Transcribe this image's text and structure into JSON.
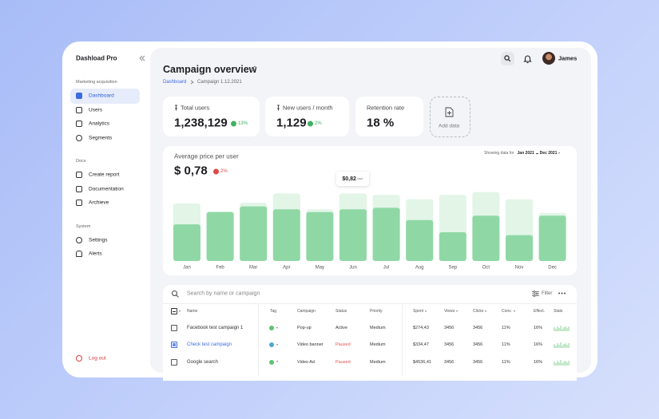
{
  "sidebar": {
    "brand": "Dashload Pro",
    "sections": [
      {
        "title": "Marketing acquisition",
        "items": [
          "Dashboard",
          "Users",
          "Analytics",
          "Segments"
        ]
      },
      {
        "title": "Docs",
        "items": [
          "Create report",
          "Documentation",
          "Archieve"
        ]
      },
      {
        "title": "System",
        "items": [
          "Settings",
          "Alerts"
        ]
      }
    ],
    "logout": "Log out"
  },
  "header": {
    "title": "Campaign overview",
    "breadcrumb": [
      "Dashboard",
      "Campaign 1.12.2021"
    ],
    "user": "James"
  },
  "stats": [
    {
      "label": "Total users",
      "value": "1,238,129",
      "change": "13%"
    },
    {
      "label": "New users / month",
      "value": "1,129",
      "change": "2%"
    },
    {
      "label": "Retention rate",
      "value": "18 %"
    }
  ],
  "add_data": "Add data",
  "chart": {
    "title": "Average price per user",
    "value": "$ 0,78",
    "change": "2%",
    "range_prefix": "Showing data for",
    "range_from": "Jan 2021",
    "range_to": "Dec 2021",
    "tooltip": {
      "value": "$0,82",
      "unit": "/user"
    },
    "categories": [
      "Jan",
      "Feb",
      "Mar",
      "Apr",
      "May",
      "Jun",
      "Jul",
      "Aug",
      "Sep",
      "Oct",
      "Nov",
      "Dec"
    ],
    "ylim": [
      0,
      100
    ],
    "series": [
      {
        "color": "#e2f5e7",
        "values": [
          80,
          69,
          81,
          94,
          72,
          94,
          92,
          86,
          92,
          96,
          86,
          67
        ]
      },
      {
        "color": "#8fd8a5",
        "values": [
          51,
          68,
          76,
          72,
          68,
          72,
          74,
          57,
          40,
          63,
          36,
          63
        ]
      }
    ]
  },
  "table": {
    "search_placeholder": "Search by name or campaign",
    "filter": "Filter",
    "columns": [
      "Name",
      "Tag",
      "Campaign",
      "Status",
      "Priority",
      "Spent",
      "Views",
      "Clicks",
      "Conv.",
      "Effect.",
      "Stats"
    ],
    "rows": [
      {
        "name": "Facebook test campaign 1",
        "tag_color": "#5cc46e",
        "campaign": "Pop-up",
        "status": "Active",
        "status_color": "#333333",
        "priority": "Medium",
        "spent": "$274,43",
        "views": "3456",
        "clicks": "3456",
        "conv": "11%",
        "effect": "16%",
        "selected": false
      },
      {
        "name": "Check test campaign",
        "tag_color": "#4aa6d8",
        "campaign": "Video banner",
        "status": "Paused",
        "status_color": "#e05252",
        "priority": "Medium",
        "spent": "$334,47",
        "views": "3456",
        "clicks": "3456",
        "conv": "11%",
        "effect": "16%",
        "selected": true
      },
      {
        "name": "Google search",
        "tag_color": "#5cc46e",
        "campaign": "Video Ad",
        "status": "Paused",
        "status_color": "#e05252",
        "priority": "Medium",
        "spent": "$4536,41",
        "views": "3456",
        "clicks": "3456",
        "conv": "11%",
        "effect": "16%",
        "selected": false
      }
    ]
  }
}
